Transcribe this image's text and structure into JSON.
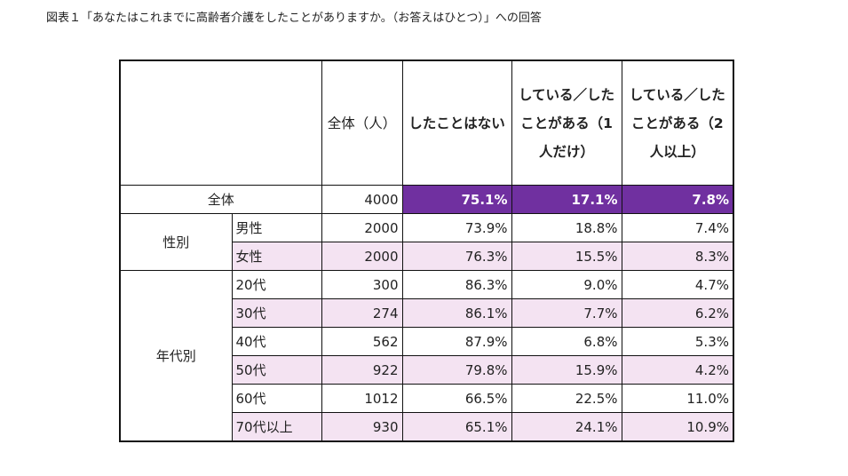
{
  "title": "図表１「あなたはこれまでに高齢者介護をしたことがありますか。（お答えはひとつ）」への回答",
  "headers": {
    "total": "全体（人）",
    "c1": "したことはない",
    "c2": "している／したことがある（1人だけ）",
    "c3": "している／したことがある（2人以上）"
  },
  "colors": {
    "highlight": "#7030a0",
    "stripe": "#f4e3f2"
  },
  "total_row": {
    "label": "全体",
    "n": "4000",
    "v": [
      "75.1%",
      "17.1%",
      "7.8%"
    ]
  },
  "groups": [
    {
      "label": "性別",
      "rows": [
        {
          "label": "男性",
          "n": "2000",
          "v": [
            "73.9%",
            "18.8%",
            "7.4%"
          ]
        },
        {
          "label": "女性",
          "n": "2000",
          "v": [
            "76.3%",
            "15.5%",
            "8.3%"
          ]
        }
      ]
    },
    {
      "label": "年代別",
      "rows": [
        {
          "label": "20代",
          "n": "300",
          "v": [
            "86.3%",
            "9.0%",
            "4.7%"
          ]
        },
        {
          "label": "30代",
          "n": "274",
          "v": [
            "86.1%",
            "7.7%",
            "6.2%"
          ]
        },
        {
          "label": "40代",
          "n": "562",
          "v": [
            "87.9%",
            "6.8%",
            "5.3%"
          ]
        },
        {
          "label": "50代",
          "n": "922",
          "v": [
            "79.8%",
            "15.9%",
            "4.2%"
          ]
        },
        {
          "label": "60代",
          "n": "1012",
          "v": [
            "66.5%",
            "22.5%",
            "11.0%"
          ]
        },
        {
          "label": "70代以上",
          "n": "930",
          "v": [
            "65.1%",
            "24.1%",
            "10.9%"
          ]
        }
      ]
    }
  ]
}
